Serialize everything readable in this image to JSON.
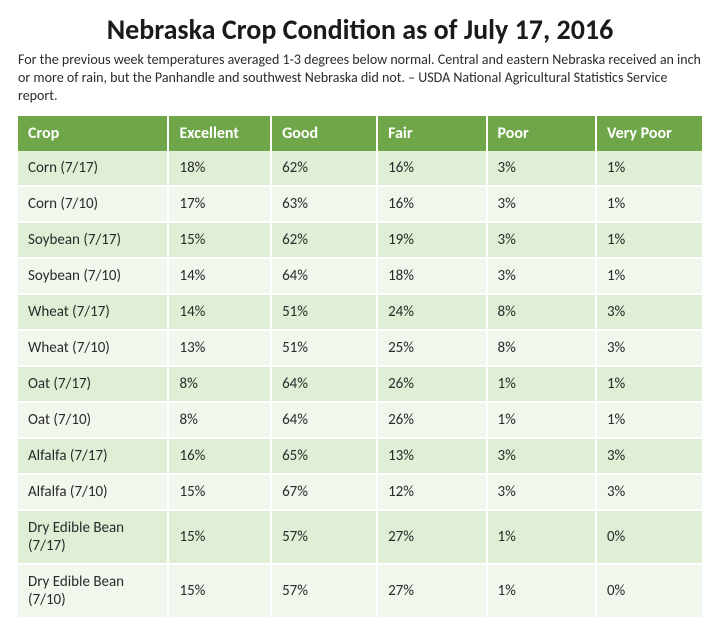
{
  "title": "Nebraska Crop Condition as of July 17, 2016",
  "subtitle": "For the previous week temperatures averaged 1-3 degrees below normal. Central and eastern Nebraska received an inch or more of rain, but the Panhandle and southwest Nebraska did not. – USDA National Agricultural Statistics Service report.",
  "table": {
    "header_bg": "#6fa64a",
    "header_color": "#ffffff",
    "row_colors": [
      "#dfeed5",
      "#f1f7ed"
    ],
    "text_color": "#2a2a2a",
    "font_size_header": 16,
    "font_size_cell": 15,
    "columns": [
      "Crop",
      "Excellent",
      "Good",
      "Fair",
      "Poor",
      "Very Poor"
    ],
    "rows": [
      [
        "Corn (7/17)",
        "18%",
        "62%",
        "16%",
        "3%",
        "1%"
      ],
      [
        "Corn (7/10)",
        "17%",
        "63%",
        "16%",
        "3%",
        "1%"
      ],
      [
        "Soybean (7/17)",
        "15%",
        "62%",
        "19%",
        "3%",
        "1%"
      ],
      [
        "Soybean (7/10)",
        "14%",
        "64%",
        "18%",
        "3%",
        "1%"
      ],
      [
        "Wheat (7/17)",
        "14%",
        "51%",
        "24%",
        "8%",
        "3%"
      ],
      [
        "Wheat (7/10)",
        "13%",
        "51%",
        "25%",
        "8%",
        "3%"
      ],
      [
        "Oat (7/17)",
        "8%",
        "64%",
        "26%",
        "1%",
        "1%"
      ],
      [
        "Oat (7/10)",
        "8%",
        "64%",
        "26%",
        "1%",
        "1%"
      ],
      [
        "Alfalfa (7/17)",
        "16%",
        "65%",
        "13%",
        "3%",
        "3%"
      ],
      [
        "Alfalfa (7/10)",
        "15%",
        "67%",
        "12%",
        "3%",
        "3%"
      ],
      [
        "Dry Edible Bean (7/17)",
        "15%",
        "57%",
        "27%",
        "1%",
        "0%"
      ],
      [
        "Dry Edible Bean (7/10)",
        "15%",
        "57%",
        "27%",
        "1%",
        "0%"
      ]
    ]
  }
}
